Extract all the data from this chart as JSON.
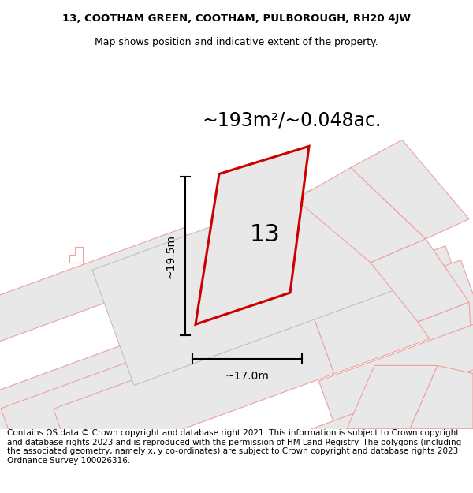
{
  "title_line1": "13, COOTHAM GREEN, COOTHAM, PULBOROUGH, RH20 4JW",
  "title_line2": "Map shows position and indicative extent of the property.",
  "area_text": "~193m²/~0.048ac.",
  "label_number": "13",
  "dim_height": "~19.5m",
  "dim_width": "~17.0m",
  "footer_text": "Contains OS data © Crown copyright and database right 2021. This information is subject to Crown copyright and database rights 2023 and is reproduced with the permission of HM Land Registry. The polygons (including the associated geometry, namely x, y co-ordinates) are subject to Crown copyright and database rights 2023 Ordnance Survey 100026316.",
  "bg_color": "#ffffff",
  "polygon_fill": "#e8e8e8",
  "pink": "#f0a0a0",
  "red": "#cc0000",
  "gray_edge": "#c0c0c0",
  "title_fontsize": 9.5,
  "area_fontsize": 17,
  "label_fontsize": 22,
  "dim_fontsize": 10,
  "footer_fontsize": 7.5
}
